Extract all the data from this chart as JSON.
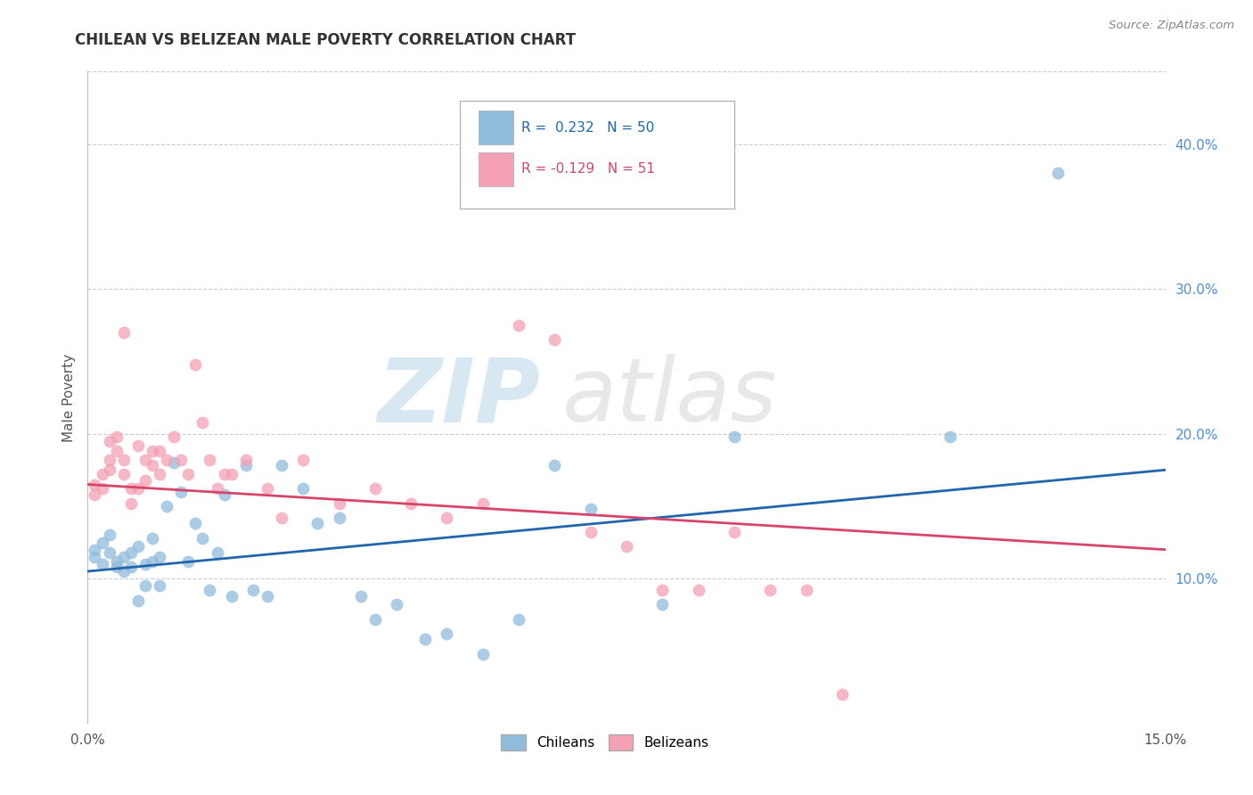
{
  "title": "CHILEAN VS BELIZEAN MALE POVERTY CORRELATION CHART",
  "source": "Source: ZipAtlas.com",
  "ylabel": "Male Poverty",
  "xlim": [
    0.0,
    0.15
  ],
  "ylim": [
    0.0,
    0.45
  ],
  "ytick_labels_right": [
    "10.0%",
    "20.0%",
    "30.0%",
    "40.0%"
  ],
  "ytick_vals_right": [
    0.1,
    0.2,
    0.3,
    0.4
  ],
  "R_chileans": 0.232,
  "N_chileans": 50,
  "R_belizeans": -0.129,
  "N_belizeans": 51,
  "chilean_color": "#8fbcdb",
  "belizean_color": "#f4a0b5",
  "chilean_line_color": "#2166ac",
  "belizean_line_color": "#d6456b",
  "background_color": "#ffffff",
  "chileans_x": [
    0.001,
    0.001,
    0.002,
    0.002,
    0.003,
    0.003,
    0.004,
    0.004,
    0.005,
    0.005,
    0.006,
    0.006,
    0.007,
    0.007,
    0.008,
    0.008,
    0.009,
    0.009,
    0.01,
    0.01,
    0.011,
    0.012,
    0.013,
    0.014,
    0.015,
    0.016,
    0.017,
    0.018,
    0.019,
    0.02,
    0.022,
    0.023,
    0.025,
    0.027,
    0.03,
    0.032,
    0.035,
    0.038,
    0.04,
    0.043,
    0.047,
    0.05,
    0.055,
    0.06,
    0.065,
    0.07,
    0.08,
    0.09,
    0.12,
    0.135
  ],
  "chileans_y": [
    0.12,
    0.115,
    0.125,
    0.11,
    0.13,
    0.118,
    0.112,
    0.108,
    0.115,
    0.105,
    0.118,
    0.108,
    0.122,
    0.085,
    0.11,
    0.095,
    0.128,
    0.112,
    0.115,
    0.095,
    0.15,
    0.18,
    0.16,
    0.112,
    0.138,
    0.128,
    0.092,
    0.118,
    0.158,
    0.088,
    0.178,
    0.092,
    0.088,
    0.178,
    0.162,
    0.138,
    0.142,
    0.088,
    0.072,
    0.082,
    0.058,
    0.062,
    0.048,
    0.072,
    0.178,
    0.148,
    0.082,
    0.198,
    0.198,
    0.38
  ],
  "belizeans_x": [
    0.001,
    0.001,
    0.002,
    0.002,
    0.003,
    0.003,
    0.003,
    0.004,
    0.004,
    0.005,
    0.005,
    0.006,
    0.006,
    0.007,
    0.007,
    0.008,
    0.008,
    0.009,
    0.009,
    0.01,
    0.01,
    0.011,
    0.012,
    0.013,
    0.014,
    0.015,
    0.016,
    0.017,
    0.018,
    0.019,
    0.02,
    0.022,
    0.025,
    0.027,
    0.03,
    0.035,
    0.04,
    0.045,
    0.05,
    0.055,
    0.06,
    0.065,
    0.07,
    0.075,
    0.08,
    0.085,
    0.09,
    0.095,
    0.1,
    0.105,
    0.005
  ],
  "belizeans_y": [
    0.165,
    0.158,
    0.172,
    0.162,
    0.195,
    0.182,
    0.175,
    0.198,
    0.188,
    0.182,
    0.172,
    0.162,
    0.152,
    0.192,
    0.162,
    0.168,
    0.182,
    0.178,
    0.188,
    0.188,
    0.172,
    0.182,
    0.198,
    0.182,
    0.172,
    0.248,
    0.208,
    0.182,
    0.162,
    0.172,
    0.172,
    0.182,
    0.162,
    0.142,
    0.182,
    0.152,
    0.162,
    0.152,
    0.142,
    0.152,
    0.275,
    0.265,
    0.132,
    0.122,
    0.092,
    0.092,
    0.132,
    0.092,
    0.092,
    0.02,
    0.27
  ],
  "line_chileans": [
    0.0,
    0.15,
    0.105,
    0.175
  ],
  "line_belizeans": [
    0.0,
    0.15,
    0.165,
    0.12
  ]
}
